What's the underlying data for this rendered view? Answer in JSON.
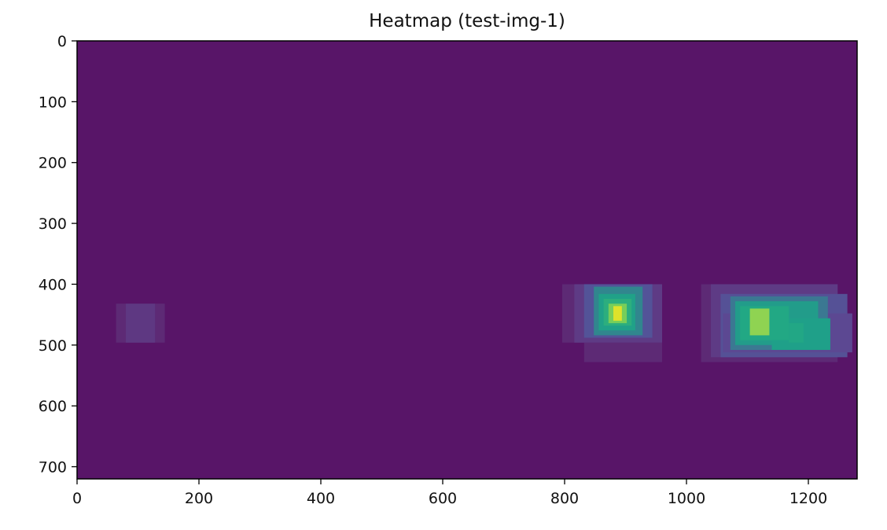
{
  "chart_data": {
    "type": "heatmap",
    "title": "Heatmap (test-img-1)",
    "xlabel": "",
    "ylabel": "",
    "xlim": [
      0,
      1280
    ],
    "ylim": [
      720,
      0
    ],
    "x_ticks": [
      0,
      200,
      400,
      600,
      800,
      1000,
      1200
    ],
    "y_ticks": [
      0,
      100,
      200,
      300,
      400,
      500,
      600,
      700
    ],
    "x_tick_labels": [
      "0",
      "200",
      "400",
      "600",
      "800",
      "1000",
      "1200"
    ],
    "y_tick_labels": [
      "0",
      "100",
      "200",
      "300",
      "400",
      "500",
      "600",
      "700"
    ],
    "grid": false,
    "colormap": "viridis",
    "value_range": [
      0,
      1
    ],
    "background_value": 0.0,
    "background_color": "#581568",
    "color_stops": [
      {
        "v": 0.0,
        "c": "#581568"
      },
      {
        "v": 0.06,
        "c": "#5e2e77"
      },
      {
        "v": 0.13,
        "c": "#5e4590"
      },
      {
        "v": 0.22,
        "c": "#4a5f9e"
      },
      {
        "v": 0.35,
        "c": "#36808f"
      },
      {
        "v": 0.5,
        "c": "#1fa089"
      },
      {
        "v": 0.62,
        "c": "#22a884"
      },
      {
        "v": 0.74,
        "c": "#5ec962"
      },
      {
        "v": 0.86,
        "c": "#a8d84a"
      },
      {
        "v": 1.0,
        "c": "#f4e61e"
      }
    ],
    "regions": [
      {
        "x0": 64,
        "x1": 144,
        "y0": 432,
        "y1": 496,
        "v": 0.05
      },
      {
        "x0": 80,
        "x1": 128,
        "y0": 432,
        "y1": 496,
        "v": 0.09
      },
      {
        "x0": 832,
        "x1": 960,
        "y0": 496,
        "y1": 528,
        "v": 0.05
      },
      {
        "x0": 796,
        "x1": 960,
        "y0": 400,
        "y1": 496,
        "v": 0.05
      },
      {
        "x0": 816,
        "x1": 960,
        "y0": 400,
        "y1": 496,
        "v": 0.1
      },
      {
        "x0": 832,
        "x1": 944,
        "y0": 400,
        "y1": 488,
        "v": 0.18
      },
      {
        "x0": 848,
        "x1": 928,
        "y0": 404,
        "y1": 484,
        "v": 0.38
      },
      {
        "x0": 856,
        "x1": 916,
        "y0": 416,
        "y1": 476,
        "v": 0.52
      },
      {
        "x0": 864,
        "x1": 910,
        "y0": 424,
        "y1": 468,
        "v": 0.64
      },
      {
        "x0": 872,
        "x1": 902,
        "y0": 432,
        "y1": 464,
        "v": 0.78
      },
      {
        "x0": 880,
        "x1": 894,
        "y0": 436,
        "y1": 460,
        "v": 0.96
      },
      {
        "x0": 1024,
        "x1": 1248,
        "y0": 400,
        "y1": 528,
        "v": 0.05
      },
      {
        "x0": 1040,
        "x1": 1248,
        "y0": 400,
        "y1": 520,
        "v": 0.1
      },
      {
        "x0": 1056,
        "x1": 1264,
        "y0": 416,
        "y1": 520,
        "v": 0.17
      },
      {
        "x0": 1060,
        "x1": 1272,
        "y0": 448,
        "y1": 512,
        "v": 0.14
      },
      {
        "x0": 1072,
        "x1": 1232,
        "y0": 420,
        "y1": 508,
        "v": 0.32
      },
      {
        "x0": 1080,
        "x1": 1216,
        "y0": 428,
        "y1": 500,
        "v": 0.48
      },
      {
        "x0": 1140,
        "x1": 1236,
        "y0": 456,
        "y1": 508,
        "v": 0.5
      },
      {
        "x0": 1088,
        "x1": 1168,
        "y0": 436,
        "y1": 492,
        "v": 0.62
      },
      {
        "x0": 1104,
        "x1": 1136,
        "y0": 440,
        "y1": 484,
        "v": 0.82
      },
      {
        "x0": 1168,
        "x1": 1192,
        "y0": 464,
        "y1": 496,
        "v": 0.6
      }
    ]
  }
}
